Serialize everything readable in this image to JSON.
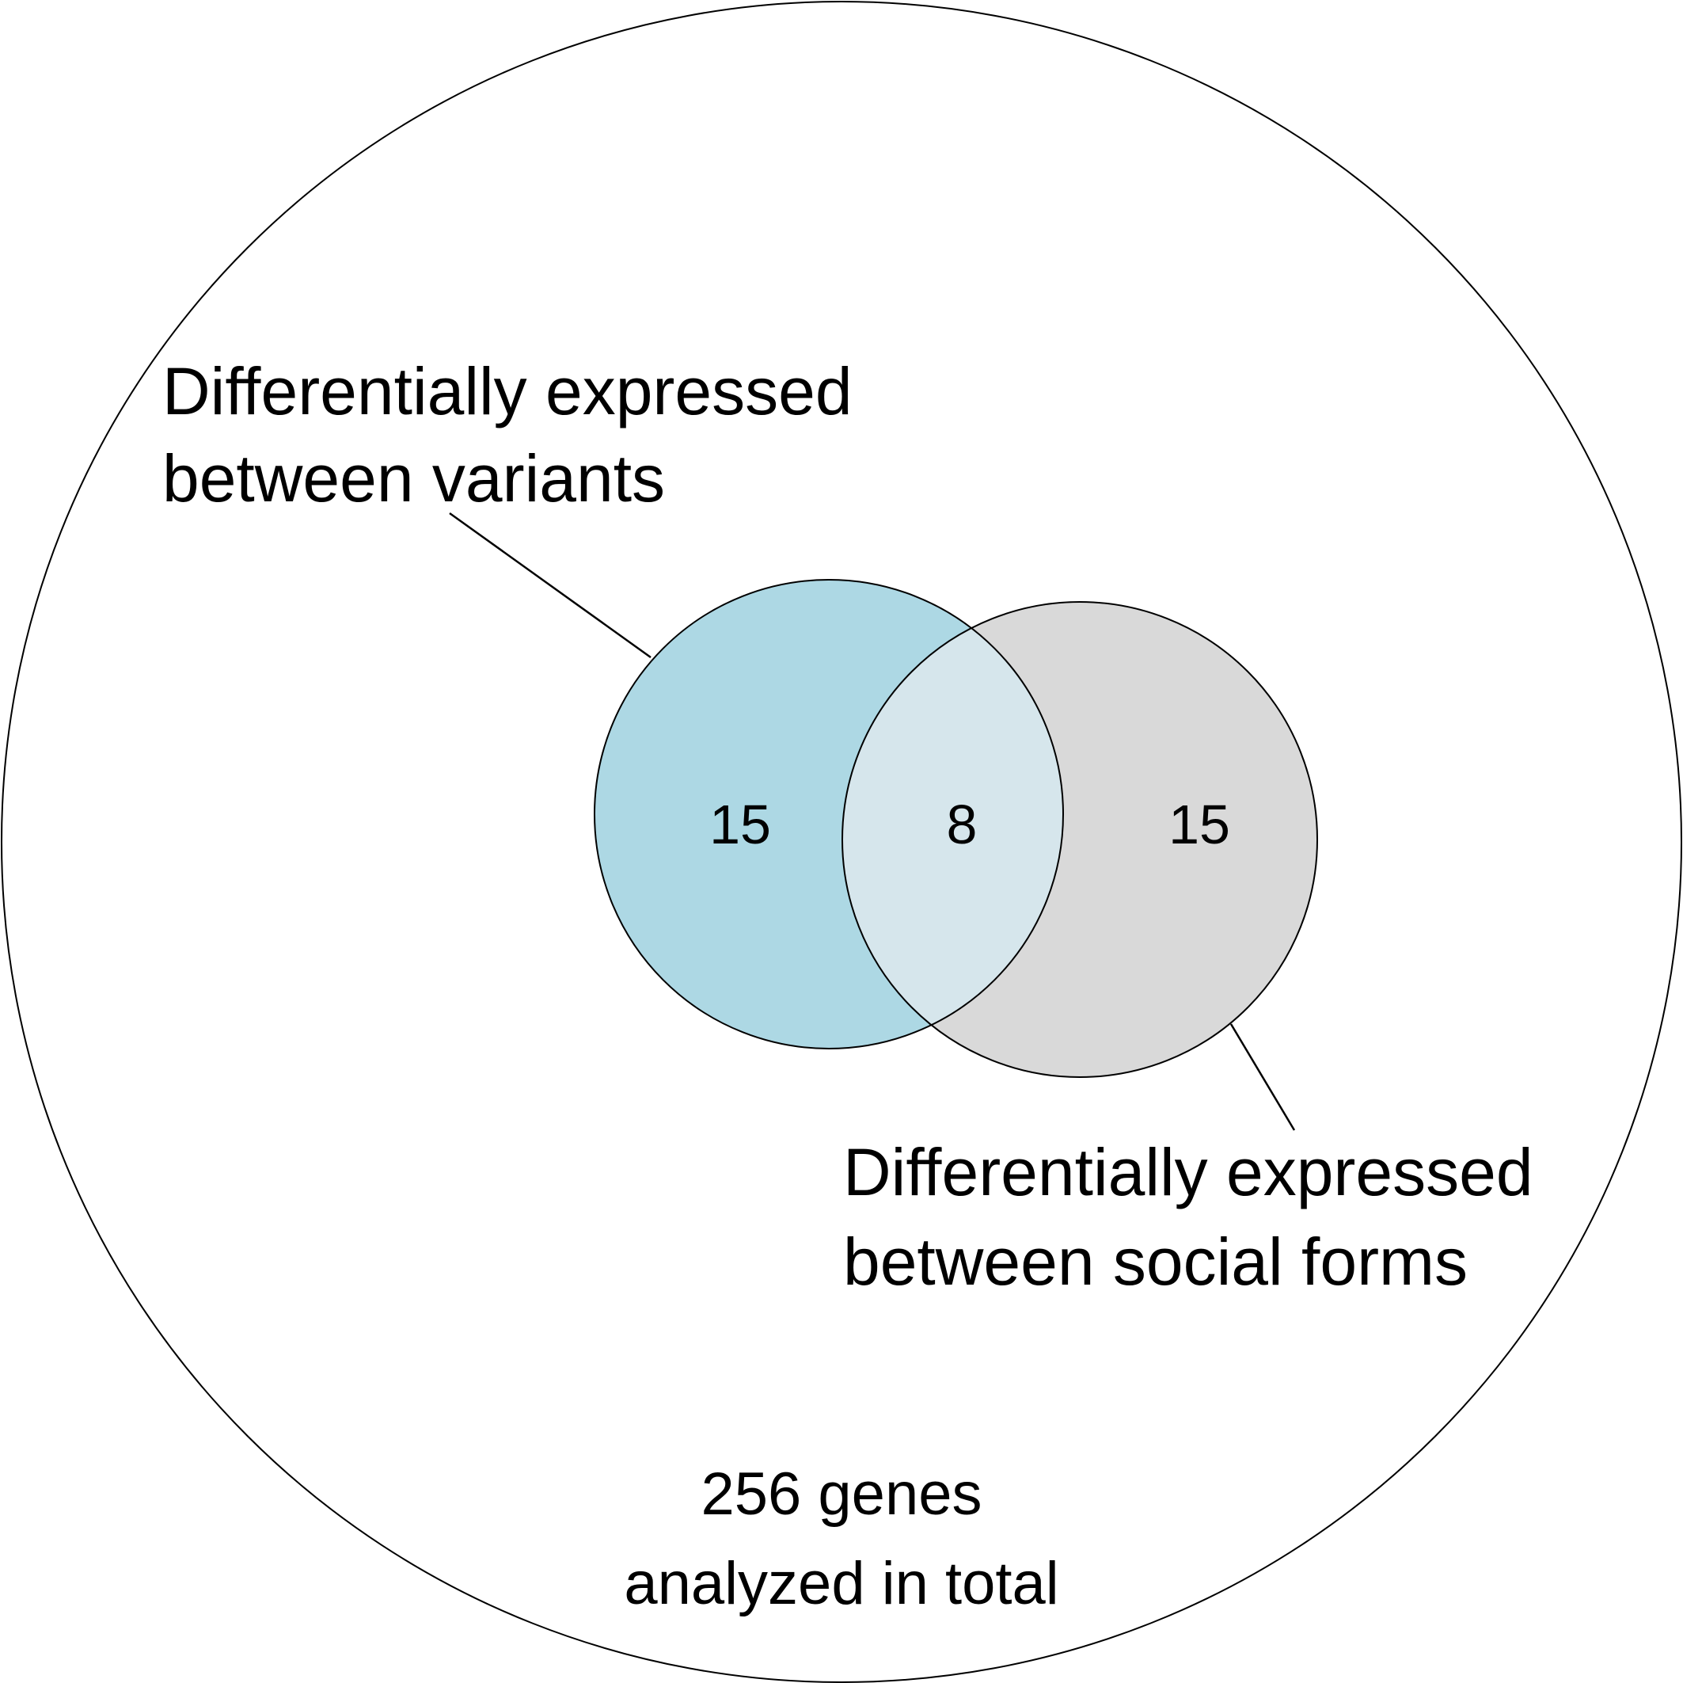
{
  "colors": {
    "variants_fill": "#add8e4",
    "social_fill": "#d9d9d9",
    "overlap_fill": "#d6e6ec",
    "stroke": "#000000",
    "background": "#ffffff"
  },
  "sets": {
    "variants": {
      "label_line1": "Differentially expressed",
      "label_line2": "between variants",
      "only_count": "15"
    },
    "social_forms": {
      "label_line1": "Differentially expressed",
      "label_line2": "between social forms",
      "only_count": "15"
    },
    "overlap_count": "8"
  },
  "total": {
    "line1": "256 genes",
    "line2": "analyzed in total"
  }
}
